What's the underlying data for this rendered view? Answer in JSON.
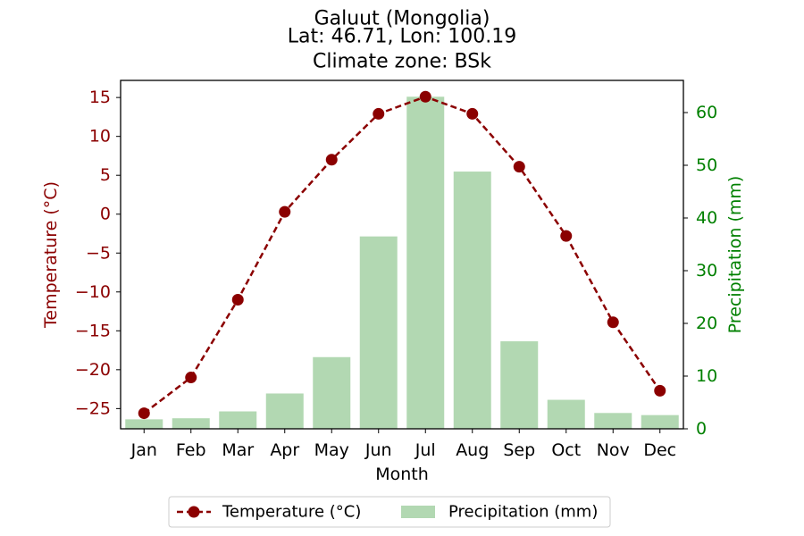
{
  "chart_data": {
    "type": "bar",
    "title_lines": [
      "Galuut (Mongolia)",
      "Lat: 46.71, Lon: 100.19",
      "Climate zone: BSk"
    ],
    "xlabel": "Month",
    "categories": [
      "Jan",
      "Feb",
      "Mar",
      "Apr",
      "May",
      "Jun",
      "Jul",
      "Aug",
      "Sep",
      "Oct",
      "Nov",
      "Dec"
    ],
    "series": [
      {
        "name": "Temperature (°C)",
        "axis": "left",
        "type": "line",
        "style": "dashed-markers",
        "color": "#8b0000",
        "values": [
          -25.6,
          -21.0,
          -11.0,
          0.3,
          7.0,
          12.9,
          15.1,
          12.9,
          6.1,
          -2.8,
          -13.9,
          -22.7
        ]
      },
      {
        "name": "Precipitation (mm)",
        "axis": "right",
        "type": "bar",
        "color": "#b2d8b2",
        "values": [
          1.8,
          2.0,
          3.3,
          6.7,
          13.6,
          36.5,
          63.0,
          48.8,
          16.6,
          5.5,
          3.0,
          2.6
        ]
      }
    ],
    "left_axis": {
      "label": "Temperature (°C)",
      "color": "#8b0000",
      "ylim": [
        -27.6,
        17.2
      ],
      "ticks": [
        -25,
        -20,
        -15,
        -10,
        -5,
        0,
        5,
        10,
        15
      ],
      "tick_labels": [
        "−25",
        "−20",
        "−15",
        "−10",
        "−5",
        "0",
        "5",
        "10",
        "15"
      ]
    },
    "right_axis": {
      "label": "Precipitation (mm)",
      "color": "#008000",
      "ylim": [
        0,
        66.1
      ],
      "ticks": [
        0,
        10,
        20,
        30,
        40,
        50,
        60
      ],
      "tick_labels": [
        "0",
        "10",
        "20",
        "30",
        "40",
        "50",
        "60"
      ]
    },
    "legend": {
      "placement": "bottom-center",
      "entries": [
        "Temperature (°C)",
        "Precipitation (mm)"
      ]
    },
    "grid": false
  }
}
